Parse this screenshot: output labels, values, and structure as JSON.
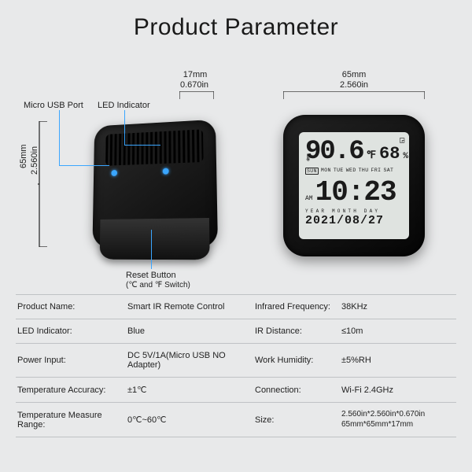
{
  "title": "Product Parameter",
  "dims": {
    "height_mm": "65mm",
    "height_in": "2.560in",
    "depth_mm": "17mm",
    "depth_in": "0.670in",
    "width_mm": "65mm",
    "width_in": "2.560in"
  },
  "callouts": {
    "usb": "Micro USB Port",
    "led": "LED Indicator",
    "reset": "Reset Button",
    "reset_sub": "(℃ and ℉ Switch)"
  },
  "display": {
    "temp": "90.6",
    "temp_unit": "℉",
    "humidity": "68",
    "humidity_unit": "%",
    "days": [
      "SUN",
      "MON",
      "TUE",
      "WED",
      "THU",
      "FRI",
      "SAT"
    ],
    "ampm": "AM",
    "time": "10:23",
    "date_labels": "YEAR    MONTH    DAY",
    "date": "2021/08/27"
  },
  "spec_rows": [
    {
      "l1": "Product Name:",
      "v1": "Smart IR Remote Control",
      "l2": "Infrared Frequency:",
      "v2": "38KHz"
    },
    {
      "l1": "LED Indicator:",
      "v1": "Blue",
      "l2": "IR Distance:",
      "v2": "≤10m"
    },
    {
      "l1": "Power Input:",
      "v1": "DC 5V/1A(Micro USB NO Adapter)",
      "l2": "Work Humidity:",
      "v2": "±5%RH"
    },
    {
      "l1": "Temperature Accuracy:",
      "v1": "±1℃",
      "l2": "Connection:",
      "v2": "Wi-Fi  2.4GHz"
    },
    {
      "l1": "Temperature Measure Range:",
      "v1": "0℃~60℃",
      "l2": "Size:",
      "v2": "2.560in*2.560in*0.670in\n65mm*65mm*17mm"
    }
  ],
  "colors": {
    "accent": "#3aa6ff",
    "bg": "#e8e9ea",
    "text": "#1a1a1a",
    "border": "#bfc2c5"
  }
}
